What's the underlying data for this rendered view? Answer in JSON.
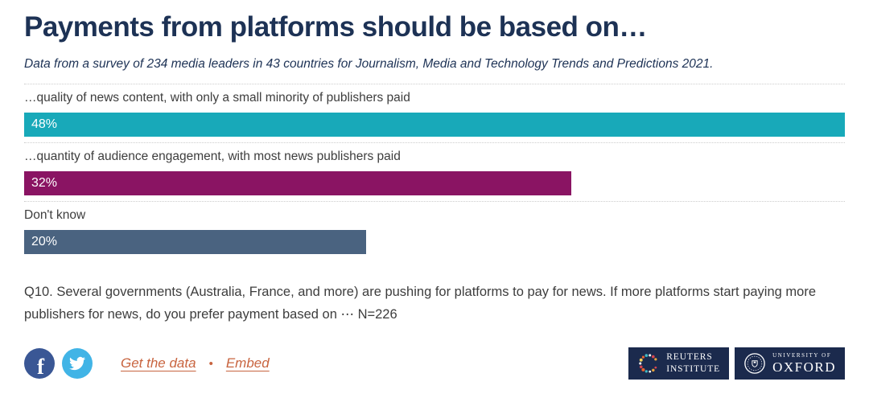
{
  "theme": {
    "title_color": "#1d3255",
    "text_color": "#3d3d3d",
    "link_color": "#c8643f",
    "logo_bg": "#1b2a4d",
    "separator_color": "#cccccc"
  },
  "header": {
    "title": "Payments from platforms should be based on…",
    "subtitle": "Data from a survey of 234 media leaders in 43 countries for Journalism, Media and Technology Trends and Predictions 2021."
  },
  "chart_data": {
    "type": "bar",
    "orientation": "horizontal",
    "title": "Payments from platforms should be based on…",
    "categories": [
      "…quality of news content, with only a small minority of publishers paid",
      "…quantity of audience engagement, with most news publishers paid",
      "Don't know"
    ],
    "values": [
      48,
      32,
      20
    ],
    "rows": [
      {
        "label": "…quality of news content, with only a small minority of publishers paid",
        "value": 48,
        "value_label": "48%",
        "color": "#18a9b9"
      },
      {
        "label": "…quantity of audience engagement, with most news publishers paid",
        "value": 32,
        "value_label": "32%",
        "color": "#8a1463"
      },
      {
        "label": "Don't know",
        "value": 20,
        "value_label": "20%",
        "color": "#4a6380"
      }
    ],
    "xlim": [
      0,
      48
    ],
    "value_labels": "inside-left, white",
    "grid": "dotted horizontal row separators",
    "legend": "none"
  },
  "footnote": "Q10. Several governments (Australia, France, and more) are pushing for platforms to pay for news. If more platforms start paying more publishers for news, do you prefer payment based on ⋯ N=226",
  "footer": {
    "share": [
      {
        "name": "facebook",
        "color": "#3a5795",
        "glyph": "f"
      },
      {
        "name": "twitter",
        "color": "#41b4e6"
      }
    ],
    "links": {
      "get_the_data": "Get the data",
      "separator": "•",
      "embed": "Embed"
    },
    "logos": {
      "reuters": {
        "line1": "REUTERS",
        "line2": "INSTITUTE"
      },
      "oxford": {
        "small": "UNIVERSITY OF",
        "large": "OXFORD"
      }
    }
  }
}
